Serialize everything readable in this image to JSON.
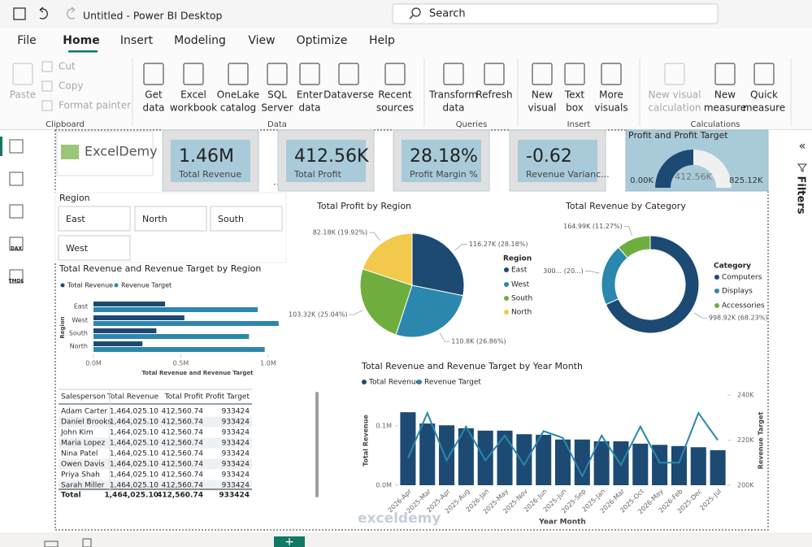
{
  "titlebar": {
    "title": "Untitled - Power BI Desktop",
    "search": "Search"
  },
  "menu": [
    "File",
    "Home",
    "Insert",
    "Modeling",
    "View",
    "Optimize",
    "Help"
  ],
  "ribbon": [
    {
      "label": "Clipboard",
      "items": [
        [
          "Paste"
        ],
        [
          "Cut"
        ],
        [
          "Copy"
        ],
        [
          "Format painter"
        ]
      ]
    },
    {
      "label": "Data",
      "items": [
        [
          "Get",
          "data"
        ],
        [
          "Excel",
          "workbook"
        ],
        [
          "OneLake",
          "catalog"
        ],
        [
          "SQL",
          "Server"
        ],
        [
          "Enter",
          "data"
        ],
        [
          "Dataverse"
        ],
        [
          "Recent",
          "sources"
        ]
      ]
    },
    {
      "label": "Queries",
      "items": [
        [
          "Transform",
          "data"
        ],
        [
          "Refresh"
        ]
      ]
    },
    {
      "label": "Insert",
      "items": [
        [
          "New",
          "visual"
        ],
        [
          "Text",
          "box"
        ],
        [
          "More",
          "visuals"
        ]
      ]
    },
    {
      "label": "Calculations",
      "items": [
        [
          "New visual",
          "calculation"
        ],
        [
          "New",
          "measure"
        ],
        [
          "Quick",
          "measure"
        ]
      ]
    }
  ],
  "nav": [
    "DAX",
    "TMDL"
  ],
  "filters": "Filters",
  "report": {
    "logo": "ExcelDemy",
    "cards": [
      {
        "value": "1.46M",
        "label": "Total Revenue"
      },
      {
        "value": "412.56K",
        "label": "Total Profit"
      },
      {
        "value": "28.18%",
        "label": "Profit Margin %"
      },
      {
        "value": "-0.62",
        "label": "Revenue Varianc..."
      }
    ],
    "slicer": {
      "title": "Region",
      "items": [
        "East",
        "North",
        "South",
        "West"
      ]
    },
    "table": {
      "columns": [
        "Salesperson",
        "Total Revenue",
        "Total Profit",
        "Profit Target"
      ],
      "rows": [
        [
          "Adam Carter",
          "1,464,025.10",
          "412,560.74",
          "933424"
        ],
        [
          "Daniel Brooks",
          "1,464,025.10",
          "412,560.74",
          "933424"
        ],
        [
          "John Kim",
          "1,464,025.10",
          "412,560.74",
          "933424"
        ],
        [
          "Maria Lopez",
          "1,464,025.10",
          "412,560.74",
          "933424"
        ],
        [
          "Nina Patel",
          "1,464,025.10",
          "412,560.74",
          "933424"
        ],
        [
          "Owen Davis",
          "1,464,025.10",
          "412,560.74",
          "933424"
        ],
        [
          "Priya Shah",
          "1,464,025.10",
          "412,560.74",
          "933424"
        ],
        [
          "Sarah Miller",
          "1,464,025.10",
          "412,560.74",
          "933424"
        ]
      ],
      "total": [
        "Total",
        "1,464,025.10",
        "412,560.74",
        "933424"
      ]
    },
    "watermark": "exceldemy"
  },
  "chart_data": [
    {
      "type": "hbar",
      "title": "Total Revenue and Revenue Target by Region",
      "categories": [
        "East",
        "West",
        "South",
        "North"
      ],
      "series": [
        {
          "name": "Total Revenue",
          "color": "#1d4a73",
          "values": [
            0.41,
            0.52,
            0.36,
            0.28
          ]
        },
        {
          "name": "Revenue Target",
          "color": "#2b87ad",
          "values": [
            0.94,
            1.06,
            0.89,
            0.98
          ]
        }
      ],
      "xlim": [
        0,
        1.07
      ],
      "xticks": [
        {
          "value": 0,
          "label": "0.0M"
        },
        {
          "value": 0.5,
          "label": "0.5M"
        },
        {
          "value": 1,
          "label": "1.0M"
        }
      ],
      "xlabel": "Total Revenue and Revenue Target",
      "ylabel": "Region"
    },
    {
      "type": "pie",
      "title": "Total Profit by Region",
      "legend_title": "Region",
      "categories": [
        "East",
        "West",
        "South",
        "North"
      ],
      "values": [
        116.27,
        110.8,
        103.32,
        82.18
      ],
      "value_labels": [
        "116.27K (28.18%)",
        "110.8K (26.86%)",
        "103.32K (25.04%)",
        "82.18K (19.92%)"
      ],
      "colors": [
        "#1d4a73",
        "#2b87ad",
        "#6fae3e",
        "#f2c94c"
      ]
    },
    {
      "type": "donut",
      "title": "Total Revenue by Category",
      "legend_title": "Category",
      "categories": [
        "Computers",
        "Displays",
        "Accessories"
      ],
      "values": [
        998.92,
        300.12,
        164.99
      ],
      "value_labels": [
        "998.92K (68.23%)",
        "300... (20...)",
        "164.99K (11.27%)"
      ],
      "colors": [
        "#1d4a73",
        "#2b87ad",
        "#6fae3e"
      ]
    },
    {
      "type": "combo",
      "title": "Total Revenue and Revenue Target by Year Month",
      "categories": [
        "2026-Apr",
        "2025-Mar",
        "2025-Apr",
        "2025-Aug",
        "2026-Jan",
        "2025-May",
        "2025-Nov",
        "2026-Jun",
        "2025-Jun",
        "2025-Sep",
        "2025-Jan",
        "2026-Mar",
        "2025-Oct",
        "2026-May",
        "2026-Feb",
        "2025-Dec",
        "2025-Jul"
      ],
      "series": [
        {
          "name": "Total Revenue",
          "color": "#1d4a73",
          "values": [
            0.123,
            0.104,
            0.101,
            0.096,
            0.092,
            0.092,
            0.086,
            0.085,
            0.077,
            0.077,
            0.074,
            0.074,
            0.07,
            0.068,
            0.066,
            0.064,
            0.059
          ]
        },
        {
          "name": "Revenue Target",
          "color": "#2b87ad",
          "axis": "y2",
          "values": [
            212,
            232,
            211,
            226,
            211,
            222,
            209,
            224,
            221,
            204,
            222,
            209,
            226,
            210,
            210,
            232,
            220
          ]
        }
      ],
      "ylim": [
        0,
        0.152
      ],
      "yticks": [
        {
          "value": 0,
          "label": "0.0M"
        },
        {
          "value": 0.1,
          "label": "0.1M"
        }
      ],
      "y2lim": [
        200,
        240
      ],
      "y2ticks": [
        {
          "value": 200,
          "label": "200K"
        },
        {
          "value": 220,
          "label": "220K"
        },
        {
          "value": 240,
          "label": "240K"
        }
      ],
      "xlabel": "Year Month",
      "ylabel": "Total Revenue",
      "y2label": "Revenue Target"
    },
    {
      "type": "gauge",
      "title": "Profit and Profit Target",
      "values": [
        412.56
      ],
      "value_labels": [
        "412.56K"
      ],
      "color": "#1d4a73",
      "ylim": [
        0,
        825.12
      ],
      "yticks": [
        {
          "value": 0,
          "label": "0.00K"
        },
        {
          "value": 825.12,
          "label": "825.12K"
        }
      ]
    }
  ]
}
